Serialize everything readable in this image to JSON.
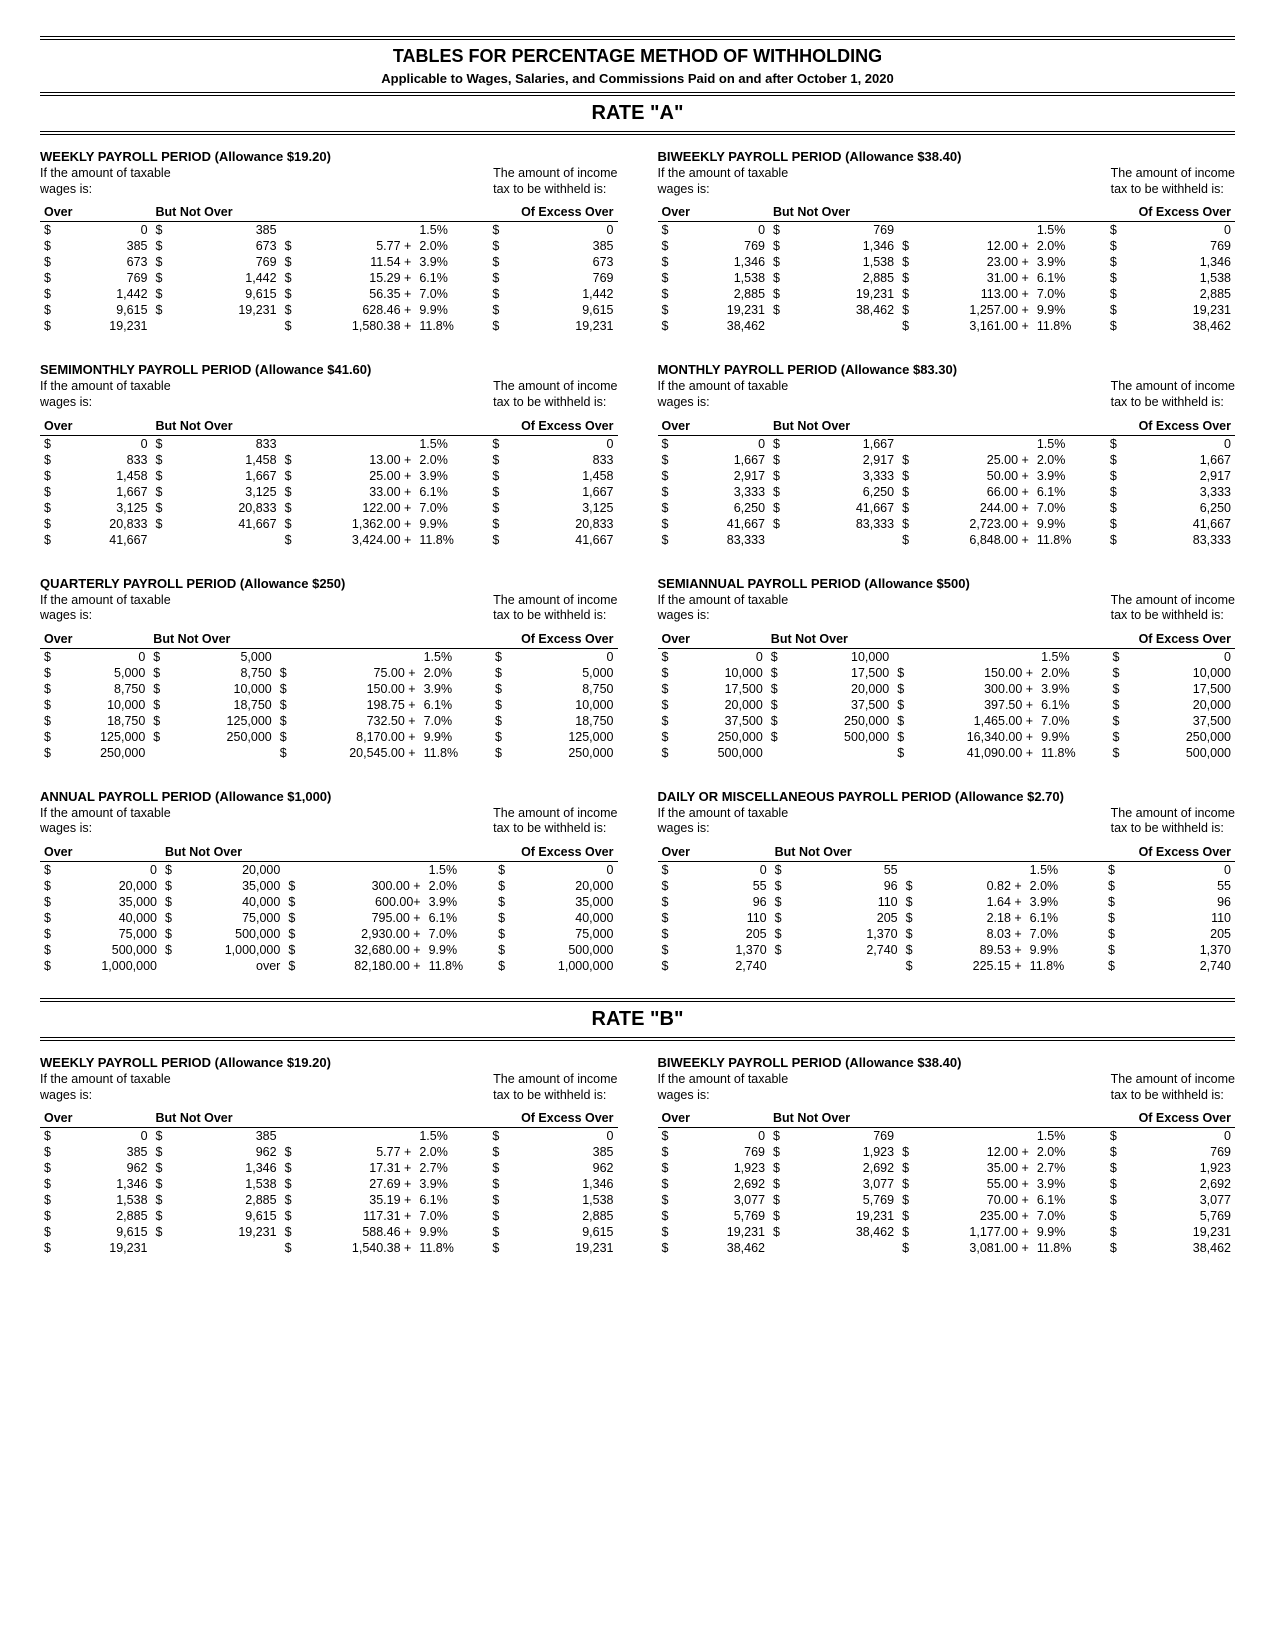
{
  "mainTitle": "TABLES FOR PERCENTAGE METHOD OF WITHHOLDING",
  "subTitle": "Applicable to Wages, Salaries, and Commissions Paid on and after October 1, 2020",
  "subheadLeft1": "If the amount of taxable",
  "subheadLeft2": "wages is:",
  "subheadRight1": "The amount of income",
  "subheadRight2": "tax to be withheld is:",
  "headers": {
    "over": "Over",
    "butNotOver": "But Not Over",
    "excess": "Of Excess Over"
  },
  "rates": [
    {
      "label": "RATE  \"A\"",
      "periods": [
        {
          "title": "WEEKLY PAYROLL PERIOD  (Allowance $19.20)",
          "rows": [
            {
              "over": "0",
              "bno": "385",
              "base": "",
              "pct": "1.5%",
              "excess": "0"
            },
            {
              "over": "385",
              "bno": "673",
              "base": "5.77 +",
              "pct": "2.0%",
              "excess": "385"
            },
            {
              "over": "673",
              "bno": "769",
              "base": "11.54 +",
              "pct": "3.9%",
              "excess": "673"
            },
            {
              "over": "769",
              "bno": "1,442",
              "base": "15.29 +",
              "pct": "6.1%",
              "excess": "769"
            },
            {
              "over": "1,442",
              "bno": "9,615",
              "base": "56.35 +",
              "pct": "7.0%",
              "excess": "1,442"
            },
            {
              "over": "9,615",
              "bno": "19,231",
              "base": "628.46 +",
              "pct": "9.9%",
              "excess": "9,615"
            },
            {
              "over": "19,231",
              "bno": "",
              "base": "1,580.38 +",
              "pct": "11.8%",
              "excess": "19,231"
            }
          ]
        },
        {
          "title": "BIWEEKLY PAYROLL PERIOD (Allowance $38.40)",
          "rows": [
            {
              "over": "0",
              "bno": "769",
              "base": "",
              "pct": "1.5%",
              "excess": "0"
            },
            {
              "over": "769",
              "bno": "1,346",
              "base": "12.00 +",
              "pct": "2.0%",
              "excess": "769"
            },
            {
              "over": "1,346",
              "bno": "1,538",
              "base": "23.00 +",
              "pct": "3.9%",
              "excess": "1,346"
            },
            {
              "over": "1,538",
              "bno": "2,885",
              "base": "31.00 +",
              "pct": "6.1%",
              "excess": "1,538"
            },
            {
              "over": "2,885",
              "bno": "19,231",
              "base": "113.00 +",
              "pct": "7.0%",
              "excess": "2,885"
            },
            {
              "over": "19,231",
              "bno": "38,462",
              "base": "1,257.00 +",
              "pct": "9.9%",
              "excess": "19,231"
            },
            {
              "over": "38,462",
              "bno": "",
              "base": "3,161.00 +",
              "pct": "11.8%",
              "excess": "38,462"
            }
          ]
        },
        {
          "title": "SEMIMONTHLY PAYROLL PERIOD (Allowance $41.60)",
          "rows": [
            {
              "over": "0",
              "bno": "833",
              "base": "",
              "pct": "1.5%",
              "excess": "0"
            },
            {
              "over": "833",
              "bno": "1,458",
              "base": "13.00 +",
              "pct": "2.0%",
              "excess": "833"
            },
            {
              "over": "1,458",
              "bno": "1,667",
              "base": "25.00 +",
              "pct": "3.9%",
              "excess": "1,458"
            },
            {
              "over": "1,667",
              "bno": "3,125",
              "base": "33.00 +",
              "pct": "6.1%",
              "excess": "1,667"
            },
            {
              "over": "3,125",
              "bno": "20,833",
              "base": "122.00 +",
              "pct": "7.0%",
              "excess": "3,125"
            },
            {
              "over": "20,833",
              "bno": "41,667",
              "base": "1,362.00 +",
              "pct": "9.9%",
              "excess": "20,833"
            },
            {
              "over": "41,667",
              "bno": "",
              "base": "3,424.00 +",
              "pct": "11.8%",
              "excess": "41,667"
            }
          ]
        },
        {
          "title": "MONTHLY PAYROLL PERIOD (Allowance $83.30)",
          "rows": [
            {
              "over": "0",
              "bno": "1,667",
              "base": "",
              "pct": "1.5%",
              "excess": "0"
            },
            {
              "over": "1,667",
              "bno": "2,917",
              "base": "25.00 +",
              "pct": "2.0%",
              "excess": "1,667"
            },
            {
              "over": "2,917",
              "bno": "3,333",
              "base": "50.00 +",
              "pct": "3.9%",
              "excess": "2,917"
            },
            {
              "over": "3,333",
              "bno": "6,250",
              "base": "66.00 +",
              "pct": "6.1%",
              "excess": "3,333"
            },
            {
              "over": "6,250",
              "bno": "41,667",
              "base": "244.00 +",
              "pct": "7.0%",
              "excess": "6,250"
            },
            {
              "over": "41,667",
              "bno": "83,333",
              "base": "2,723.00 +",
              "pct": "9.9%",
              "excess": "41,667"
            },
            {
              "over": "83,333",
              "bno": "",
              "base": "6,848.00 +",
              "pct": "11.8%",
              "excess": "83,333"
            }
          ]
        },
        {
          "title": "QUARTERLY PAYROLL PERIOD (Allowance $250)",
          "rows": [
            {
              "over": "0",
              "bno": "5,000",
              "base": "",
              "pct": "1.5%",
              "excess": "0"
            },
            {
              "over": "5,000",
              "bno": "8,750",
              "base": "75.00 +",
              "pct": "2.0%",
              "excess": "5,000"
            },
            {
              "over": "8,750",
              "bno": "10,000",
              "base": "150.00 +",
              "pct": "3.9%",
              "excess": "8,750"
            },
            {
              "over": "10,000",
              "bno": "18,750",
              "base": "198.75 +",
              "pct": "6.1%",
              "excess": "10,000"
            },
            {
              "over": "18,750",
              "bno": "125,000",
              "base": "732.50 +",
              "pct": "7.0%",
              "excess": "18,750"
            },
            {
              "over": "125,000",
              "bno": "250,000",
              "base": "8,170.00 +",
              "pct": "9.9%",
              "excess": "125,000"
            },
            {
              "over": "250,000",
              "bno": "",
              "base": "20,545.00 +",
              "pct": "11.8%",
              "excess": "250,000"
            }
          ]
        },
        {
          "title": "SEMIANNUAL PAYROLL PERIOD (Allowance $500)",
          "rows": [
            {
              "over": "0",
              "bno": "10,000",
              "base": "",
              "pct": "1.5%",
              "excess": "0"
            },
            {
              "over": "10,000",
              "bno": "17,500",
              "base": "150.00 +",
              "pct": "2.0%",
              "excess": "10,000"
            },
            {
              "over": "17,500",
              "bno": "20,000",
              "base": "300.00 +",
              "pct": "3.9%",
              "excess": "17,500"
            },
            {
              "over": "20,000",
              "bno": "37,500",
              "base": "397.50 +",
              "pct": "6.1%",
              "excess": "20,000"
            },
            {
              "over": "37,500",
              "bno": "250,000",
              "base": "1,465.00 +",
              "pct": "7.0%",
              "excess": "37,500"
            },
            {
              "over": "250,000",
              "bno": "500,000",
              "base": "16,340.00 +",
              "pct": "9.9%",
              "excess": "250,000"
            },
            {
              "over": "500,000",
              "bno": "",
              "base": "41,090.00 +",
              "pct": "11.8%",
              "excess": "500,000"
            }
          ]
        },
        {
          "title": "ANNUAL PAYROLL PERIOD (Allowance $1,000)",
          "rows": [
            {
              "over": "0",
              "bno": "20,000",
              "base": "",
              "pct": "1.5%",
              "excess": "0"
            },
            {
              "over": "20,000",
              "bno": "35,000",
              "base": "300.00 +",
              "pct": "2.0%",
              "excess": "20,000"
            },
            {
              "over": "35,000",
              "bno": "40,000",
              "base": "600.00+",
              "pct": "3.9%",
              "excess": "35,000"
            },
            {
              "over": "40,000",
              "bno": "75,000",
              "base": "795.00 +",
              "pct": "6.1%",
              "excess": "40,000"
            },
            {
              "over": "75,000",
              "bno": "500,000",
              "base": "2,930.00 +",
              "pct": "7.0%",
              "excess": "75,000"
            },
            {
              "over": "500,000",
              "bno": "1,000,000",
              "base": "32,680.00 +",
              "pct": "9.9%",
              "excess": "500,000"
            },
            {
              "over": "1,000,000",
              "bno": "over",
              "base": "82,180.00 +",
              "pct": "11.8%",
              "excess": "1,000,000"
            }
          ]
        },
        {
          "title": "DAILY OR MISCELLANEOUS PAYROLL PERIOD (Allowance $2.70)",
          "rows": [
            {
              "over": "0",
              "bno": "55",
              "base": "",
              "pct": "1.5%",
              "excess": "0"
            },
            {
              "over": "55",
              "bno": "96",
              "base": "0.82 +",
              "pct": "2.0%",
              "excess": "55"
            },
            {
              "over": "96",
              "bno": "110",
              "base": "1.64 +",
              "pct": "3.9%",
              "excess": "96"
            },
            {
              "over": "110",
              "bno": "205",
              "base": "2.18 +",
              "pct": "6.1%",
              "excess": "110"
            },
            {
              "over": "205",
              "bno": "1,370",
              "base": "8.03 +",
              "pct": "7.0%",
              "excess": "205"
            },
            {
              "over": "1,370",
              "bno": "2,740",
              "base": "89.53 +",
              "pct": "9.9%",
              "excess": "1,370"
            },
            {
              "over": "2,740",
              "bno": "",
              "base": "225.15 +",
              "pct": "11.8%",
              "excess": "2,740"
            }
          ]
        }
      ]
    },
    {
      "label": "RATE  \"B\"",
      "periods": [
        {
          "title": "WEEKLY PAYROLL PERIOD (Allowance $19.20)",
          "rows": [
            {
              "over": "0",
              "bno": "385",
              "base": "",
              "pct": "1.5%",
              "excess": "0"
            },
            {
              "over": "385",
              "bno": "962",
              "base": "5.77 +",
              "pct": "2.0%",
              "excess": "385"
            },
            {
              "over": "962",
              "bno": "1,346",
              "base": "17.31 +",
              "pct": "2.7%",
              "excess": "962"
            },
            {
              "over": "1,346",
              "bno": "1,538",
              "base": "27.69 +",
              "pct": "3.9%",
              "excess": "1,346"
            },
            {
              "over": "1,538",
              "bno": "2,885",
              "base": "35.19 +",
              "pct": "6.1%",
              "excess": "1,538"
            },
            {
              "over": "2,885",
              "bno": "9,615",
              "base": "117.31 +",
              "pct": "7.0%",
              "excess": "2,885"
            },
            {
              "over": "9,615",
              "bno": "19,231",
              "base": "588.46 +",
              "pct": "9.9%",
              "excess": "9,615"
            },
            {
              "over": "19,231",
              "bno": "",
              "base": "1,540.38 +",
              "pct": "11.8%",
              "excess": "19,231"
            }
          ]
        },
        {
          "title": "BIWEEKLY PAYROLL PERIOD (Allowance $38.40)",
          "rows": [
            {
              "over": "0",
              "bno": "769",
              "base": "",
              "pct": "1.5%",
              "excess": "0"
            },
            {
              "over": "769",
              "bno": "1,923",
              "base": "12.00 +",
              "pct": "2.0%",
              "excess": "769"
            },
            {
              "over": "1,923",
              "bno": "2,692",
              "base": "35.00 +",
              "pct": "2.7%",
              "excess": "1,923"
            },
            {
              "over": "2,692",
              "bno": "3,077",
              "base": "55.00 +",
              "pct": "3.9%",
              "excess": "2,692"
            },
            {
              "over": "3,077",
              "bno": "5,769",
              "base": "70.00 +",
              "pct": "6.1%",
              "excess": "3,077"
            },
            {
              "over": "5,769",
              "bno": "19,231",
              "base": "235.00 +",
              "pct": "7.0%",
              "excess": "5,769"
            },
            {
              "over": "19,231",
              "bno": "38,462",
              "base": "1,177.00 +",
              "pct": "9.9%",
              "excess": "19,231"
            },
            {
              "over": "38,462",
              "bno": "",
              "base": "3,081.00 +",
              "pct": "11.8%",
              "excess": "38,462"
            }
          ]
        }
      ]
    }
  ]
}
